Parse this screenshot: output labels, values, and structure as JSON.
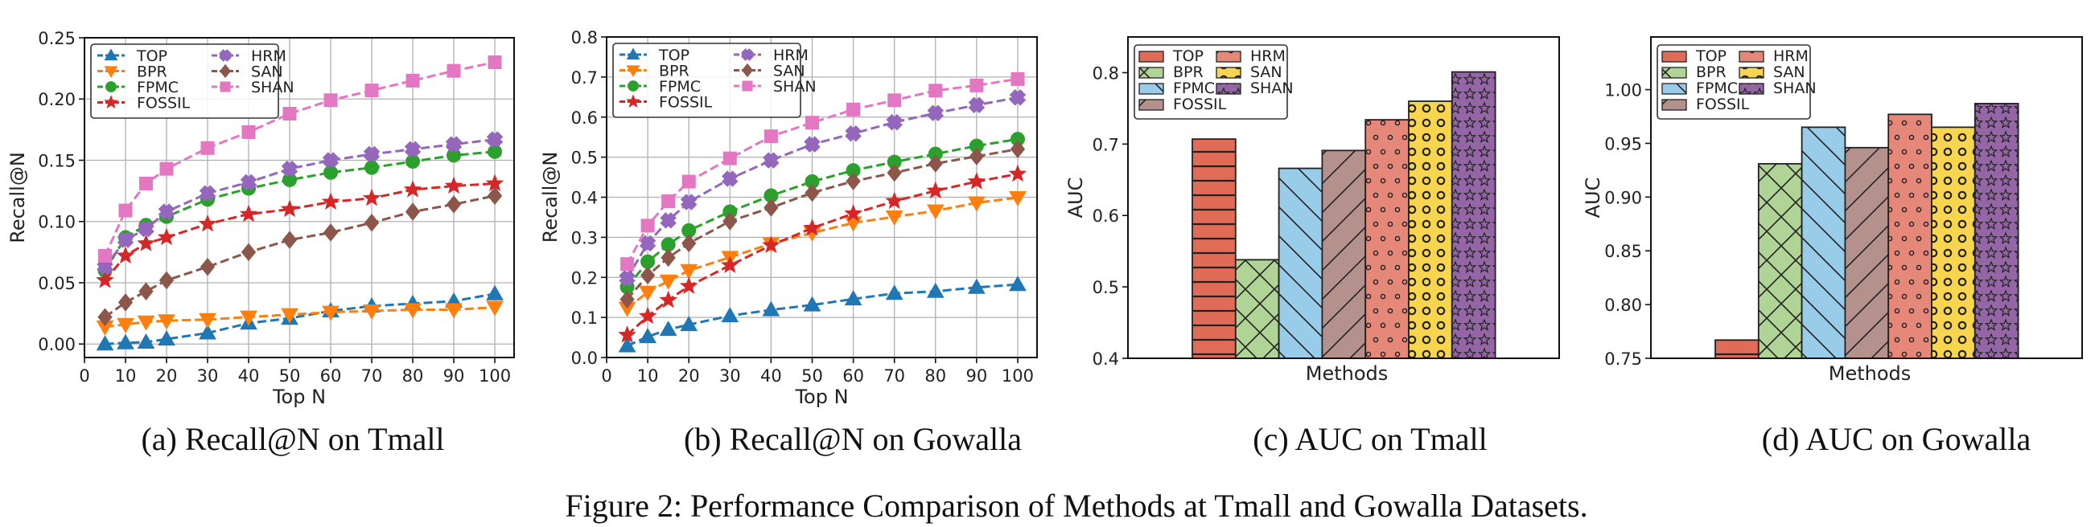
{
  "figure_caption": "Figure 2: Performance Comparison of Methods at Tmall and Gowalla Datasets.",
  "chart_data": [
    {
      "id": "a",
      "type": "line",
      "caption": "(a) Recall@N on Tmall",
      "title": "",
      "xlabel": "Top N",
      "ylabel": "Recall@N",
      "x": [
        5,
        10,
        15,
        20,
        30,
        40,
        50,
        60,
        70,
        80,
        90,
        100
      ],
      "xlim": [
        0,
        104.7
      ],
      "ylim": [
        -0.011,
        0.25
      ],
      "xticks": [
        0,
        10,
        20,
        30,
        40,
        50,
        60,
        70,
        80,
        90,
        100
      ],
      "yticks": [
        0.0,
        0.05,
        0.1,
        0.15,
        0.2,
        0.25
      ],
      "ytick_labels": [
        "0.00",
        "0.05",
        "0.10",
        "0.15",
        "0.20",
        "0.25"
      ],
      "grid": true,
      "legend_position": "top-left",
      "legend_columns": 2,
      "series": [
        {
          "name": "TOP",
          "color": "#1f77b4",
          "marker": "triangle-up",
          "values": [
            0.0,
            0.001,
            0.0015,
            0.004,
            0.009,
            0.017,
            0.021,
            0.027,
            0.031,
            0.033,
            0.035,
            0.041
          ]
        },
        {
          "name": "BPR",
          "color": "#ff7f0e",
          "marker": "triangle-down",
          "values": [
            0.014,
            0.016,
            0.018,
            0.019,
            0.02,
            0.022,
            0.024,
            0.026,
            0.027,
            0.028,
            0.028,
            0.03
          ]
        },
        {
          "name": "FPMC",
          "color": "#2ca02c",
          "marker": "circle",
          "values": [
            0.06,
            0.087,
            0.097,
            0.104,
            0.118,
            0.127,
            0.134,
            0.14,
            0.144,
            0.149,
            0.154,
            0.157
          ]
        },
        {
          "name": "FOSSIL",
          "color": "#d62728",
          "marker": "star",
          "values": [
            0.052,
            0.072,
            0.082,
            0.087,
            0.098,
            0.106,
            0.11,
            0.116,
            0.119,
            0.126,
            0.129,
            0.131
          ]
        },
        {
          "name": "HRM",
          "color": "#9467bd",
          "marker": "plus-filled",
          "values": [
            0.063,
            0.085,
            0.094,
            0.108,
            0.123,
            0.132,
            0.143,
            0.15,
            0.155,
            0.159,
            0.163,
            0.167
          ]
        },
        {
          "name": "SAN",
          "color": "#8c564b",
          "marker": "diamond",
          "values": [
            0.022,
            0.034,
            0.043,
            0.052,
            0.063,
            0.075,
            0.085,
            0.091,
            0.099,
            0.108,
            0.114,
            0.121
          ]
        },
        {
          "name": "SHAN",
          "color": "#e377c2",
          "marker": "square",
          "values": [
            0.072,
            0.109,
            0.131,
            0.143,
            0.16,
            0.173,
            0.188,
            0.199,
            0.207,
            0.215,
            0.223,
            0.23
          ]
        }
      ]
    },
    {
      "id": "b",
      "type": "line",
      "caption": "(b) Recall@N on Gowalla",
      "title": "",
      "xlabel": "Top N",
      "ylabel": "Recall@N",
      "x": [
        5,
        10,
        15,
        20,
        30,
        40,
        50,
        60,
        70,
        80,
        90,
        100
      ],
      "xlim": [
        0,
        104.7
      ],
      "ylim": [
        0,
        0.8
      ],
      "xticks": [
        0,
        10,
        20,
        30,
        40,
        50,
        60,
        70,
        80,
        90,
        100
      ],
      "yticks": [
        0.0,
        0.1,
        0.2,
        0.3,
        0.4,
        0.5,
        0.6,
        0.7,
        0.8
      ],
      "ytick_labels": [
        "0.0",
        "0.1",
        "0.2",
        "0.3",
        "0.4",
        "0.5",
        "0.6",
        "0.7",
        "0.8"
      ],
      "grid": true,
      "legend_position": "top-left",
      "legend_columns": 2,
      "series": [
        {
          "name": "TOP",
          "color": "#1f77b4",
          "marker": "triangle-up",
          "values": [
            0.029,
            0.052,
            0.07,
            0.082,
            0.104,
            0.119,
            0.131,
            0.146,
            0.16,
            0.165,
            0.175,
            0.182
          ]
        },
        {
          "name": "BPR",
          "color": "#ff7f0e",
          "marker": "triangle-down",
          "values": [
            0.123,
            0.163,
            0.191,
            0.217,
            0.25,
            0.284,
            0.311,
            0.336,
            0.351,
            0.366,
            0.386,
            0.399
          ]
        },
        {
          "name": "FPMC",
          "color": "#2ca02c",
          "marker": "circle",
          "values": [
            0.176,
            0.239,
            0.282,
            0.317,
            0.364,
            0.404,
            0.439,
            0.467,
            0.488,
            0.508,
            0.528,
            0.545
          ]
        },
        {
          "name": "FOSSIL",
          "color": "#d62728",
          "marker": "star",
          "values": [
            0.056,
            0.103,
            0.143,
            0.178,
            0.23,
            0.28,
            0.323,
            0.359,
            0.39,
            0.416,
            0.439,
            0.458
          ]
        },
        {
          "name": "HRM",
          "color": "#9467bd",
          "marker": "plus-filled",
          "values": [
            0.198,
            0.285,
            0.342,
            0.388,
            0.446,
            0.492,
            0.532,
            0.559,
            0.587,
            0.61,
            0.63,
            0.649
          ]
        },
        {
          "name": "SAN",
          "color": "#8c564b",
          "marker": "diamond",
          "values": [
            0.145,
            0.205,
            0.249,
            0.285,
            0.34,
            0.374,
            0.411,
            0.44,
            0.461,
            0.484,
            0.502,
            0.52
          ]
        },
        {
          "name": "SHAN",
          "color": "#e377c2",
          "marker": "square",
          "values": [
            0.233,
            0.329,
            0.39,
            0.439,
            0.497,
            0.552,
            0.586,
            0.619,
            0.642,
            0.666,
            0.679,
            0.695
          ]
        }
      ]
    },
    {
      "id": "c",
      "type": "bar",
      "caption": "(c) AUC on Tmall",
      "title": "",
      "xlabel": "Methods",
      "ylabel": "AUC",
      "categories": [
        "TOP",
        "BPR",
        "FPMC",
        "FOSSIL",
        "HRM",
        "SAN",
        "SHAN"
      ],
      "values": [
        0.707,
        0.538,
        0.666,
        0.691,
        0.734,
        0.76,
        0.801
      ],
      "ylim": [
        0.4,
        0.85
      ],
      "yticks": [
        0.4,
        0.5,
        0.6,
        0.7,
        0.8
      ],
      "ytick_labels": [
        "0.4",
        "0.5",
        "0.6",
        "0.7",
        "0.8"
      ],
      "grid": false,
      "legend_position": "top-left",
      "legend_columns": 2,
      "colors": [
        "#e06c58",
        "#b0d396",
        "#99cce8",
        "#b5918e",
        "#e5887a",
        "#f7d54f",
        "#9566a6"
      ],
      "hatches": [
        "horizontal",
        "cross",
        "backslash",
        "slash",
        "small-dots",
        "large-circles",
        "stars"
      ]
    },
    {
      "id": "d",
      "type": "bar",
      "caption": "(d) AUC on Gowalla",
      "title": "",
      "xlabel": "Methods",
      "ylabel": "AUC",
      "categories": [
        "TOP",
        "BPR",
        "FPMC",
        "FOSSIL",
        "HRM",
        "SAN",
        "SHAN"
      ],
      "values": [
        0.767,
        0.931,
        0.965,
        0.946,
        0.977,
        0.965,
        0.987
      ],
      "ylim": [
        0.75,
        1.049
      ],
      "yticks": [
        0.75,
        0.8,
        0.85,
        0.9,
        0.95,
        1.0
      ],
      "ytick_labels": [
        "0.75",
        "0.80",
        "0.85",
        "0.90",
        "0.95",
        "1.00"
      ],
      "grid": false,
      "legend_position": "top-left",
      "legend_columns": 2,
      "colors": [
        "#e06c58",
        "#b0d396",
        "#99cce8",
        "#b5918e",
        "#e5887a",
        "#f7d54f",
        "#9566a6"
      ],
      "hatches": [
        "horizontal",
        "cross",
        "backslash",
        "slash",
        "small-dots",
        "large-circles",
        "stars"
      ]
    }
  ]
}
